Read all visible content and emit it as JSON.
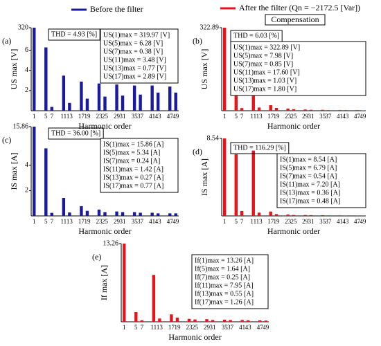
{
  "legend": {
    "before": "Before the filter",
    "after": "After the filter (Qn = −2172.5 [Var])",
    "compensation": "Compensation"
  },
  "chart_data": [
    {
      "type": "bar",
      "panel": "(a)",
      "color": "#1a1aa0",
      "ylabel": "US max [V]",
      "xlabel": "Harmonic order",
      "thd": "THD = 4.93 [%]",
      "box": [
        "US(1)max = 319.97 [V]",
        "US(5)max = 6.28 [V]",
        "US(7)max = 0.38 [V]",
        "US(11)max = 3.48 [V]",
        "US(13)max = 0.77 [V]",
        "US(17)max = 2.89 [V]"
      ],
      "x": [
        1,
        5,
        7,
        11,
        13,
        17,
        19,
        23,
        25,
        29,
        31,
        35,
        37,
        41,
        43,
        47,
        49
      ],
      "xlim": [
        0,
        50
      ],
      "values": [
        319.97,
        6.28,
        0.38,
        3.48,
        0.77,
        2.89,
        1.2,
        2.7,
        1.4,
        2.6,
        1.5,
        2.5,
        1.6,
        2.5,
        1.8,
        2.4,
        1.8
      ],
      "ylim": [
        0,
        320
      ],
      "ybreak": 7,
      "yticks": [
        2,
        4,
        6,
        320
      ]
    },
    {
      "type": "bar",
      "panel": "(b)",
      "color": "#e8141b",
      "ylabel": "US max [V]",
      "xlabel": "Harmonic order",
      "thd": "THD = 6.03 [%]",
      "box": [
        "US(1)max = 322.89 [V]",
        "US(5)max = 7.98 [V]",
        "US(7)max = 0.85 [V]",
        "US(11)max = 17.60 [V]",
        "US(13)max = 1.03 [V]",
        "US(17)max = 1.80 [V]"
      ],
      "x": [
        1,
        5,
        7,
        11,
        13,
        17,
        19,
        23,
        25,
        29,
        31,
        35,
        37,
        41,
        43,
        47,
        49
      ],
      "xlim": [
        0,
        50
      ],
      "values": [
        322.89,
        7.98,
        0.85,
        17.6,
        1.03,
        1.8,
        0.9,
        0.7,
        0.5,
        0.4,
        0.3,
        0.3,
        0.2,
        0.2,
        0.2,
        0.2,
        0.1
      ],
      "ylim": [
        0,
        322.89
      ],
      "ybreak": 23,
      "yticks": [
        322.89
      ]
    },
    {
      "type": "bar",
      "panel": "(c)",
      "color": "#1a1aa0",
      "ylabel": "IS max [A]",
      "xlabel": "Harmonic order",
      "thd": "THD = 36.00 [%]",
      "box": [
        "IS(1)max = 15.86 [A]",
        "IS(5)max = 5.34 [A]",
        "IS(7)max = 0.24 [A]",
        "IS(11)max = 1.42 [A]",
        "IS(13)max = 0.27 [A]",
        "IS(17)max = 0.77 [A]"
      ],
      "x": [
        1,
        5,
        7,
        11,
        13,
        17,
        19,
        23,
        25,
        29,
        31,
        35,
        37,
        41,
        43,
        47,
        49
      ],
      "xlim": [
        0,
        50
      ],
      "values": [
        15.86,
        5.34,
        0.24,
        1.42,
        0.27,
        0.77,
        0.4,
        0.5,
        0.3,
        0.35,
        0.3,
        0.3,
        0.25,
        0.25,
        0.2,
        0.2,
        0.2
      ],
      "ylim": [
        0,
        15.86
      ],
      "ybreak": 6,
      "yticks": [
        2,
        4,
        15.86
      ]
    },
    {
      "type": "bar",
      "panel": "(d)",
      "color": "#e8141b",
      "ylabel": "IS max [A]",
      "xlabel": "Harmonic order",
      "thd": "THD = 116.29 [%]",
      "box": [
        "IS(1)max = 8.54 [A]",
        "IS(5)max = 6.79 [A]",
        "IS(7)max = 0.54 [A]",
        "IS(11)max = 7.20 [A]",
        "IS(13)max = 0.36 [A]",
        "IS(17)max = 0.48 [A]"
      ],
      "x": [
        1,
        5,
        7,
        11,
        13,
        17,
        19,
        23,
        25,
        29,
        31,
        35,
        37,
        41,
        43,
        47,
        49
      ],
      "xlim": [
        0,
        50
      ],
      "values": [
        8.54,
        6.79,
        0.54,
        7.2,
        0.36,
        0.48,
        0.2,
        0.15,
        0.1,
        0.1,
        0.08,
        0.08,
        0.06,
        0.06,
        0.05,
        0.05,
        0.05
      ],
      "ylim": [
        0,
        8.54
      ],
      "yticks": [
        8.54
      ]
    },
    {
      "type": "bar",
      "panel": "(e)",
      "color": "#e8141b",
      "ylabel": "If max [A]",
      "xlabel": "Harmonic order",
      "box": [
        "If(1)max = 13.26 [A]",
        "If(5)max = 1.64 [A]",
        "If(7)max = 0.25 [A]",
        "If(11)max = 7.95 [A]",
        "If(13)max = 0.55 [A]",
        "If(17)max = 1.26 [A]"
      ],
      "x": [
        1,
        5,
        7,
        11,
        13,
        17,
        19,
        23,
        25,
        29,
        31,
        35,
        37,
        41,
        43,
        47,
        49
      ],
      "xlim": [
        0,
        50
      ],
      "values": [
        13.26,
        1.64,
        0.25,
        7.95,
        0.55,
        1.26,
        0.7,
        0.5,
        0.4,
        0.45,
        0.3,
        0.35,
        0.3,
        0.3,
        0.25,
        0.25,
        0.2
      ],
      "ylim": [
        0,
        13.26
      ],
      "yticks": [
        13.26
      ]
    }
  ]
}
